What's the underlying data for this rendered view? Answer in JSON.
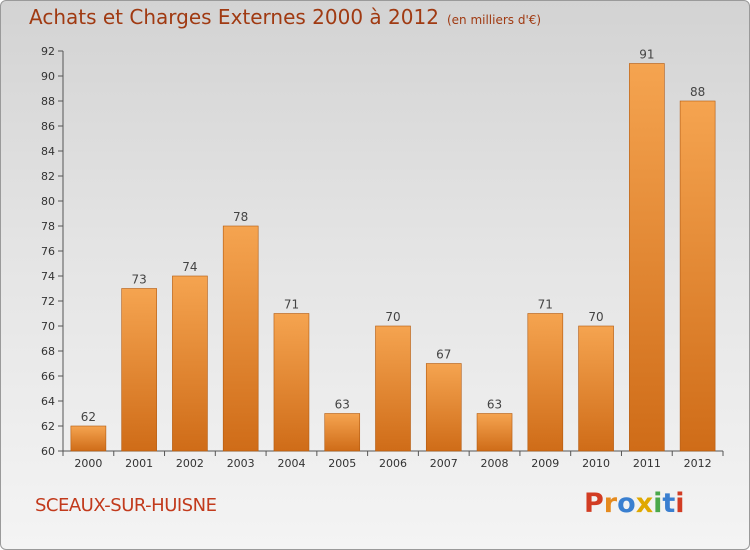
{
  "header": {
    "title": "Achats et Charges Externes 2000 à 2012",
    "unit": "(en milliers d'€)"
  },
  "footer": {
    "city": "SCEAUX-SUR-HUISNE",
    "brand_letters": [
      "P",
      "r",
      "o",
      "x",
      "i",
      "t",
      "i"
    ],
    "brand_colors": [
      "#d23c23",
      "#e58a1e",
      "#3a7fd0",
      "#e0a800",
      "#4aa84a",
      "#3a7fd0",
      "#d23c23"
    ]
  },
  "colors": {
    "bar_light": "#f5a450",
    "bar_dark": "#cf6c18",
    "bar_edge": "#b25a10"
  },
  "chart_data": {
    "type": "bar",
    "categories": [
      "2000",
      "2001",
      "2002",
      "2003",
      "2004",
      "2005",
      "2006",
      "2007",
      "2008",
      "2009",
      "2010",
      "2011",
      "2012"
    ],
    "values": [
      62,
      73,
      74,
      78,
      71,
      63,
      70,
      67,
      63,
      71,
      70,
      91,
      88
    ],
    "ylim": [
      60,
      92
    ],
    "yticks": [
      60,
      62,
      64,
      66,
      68,
      70,
      72,
      74,
      76,
      78,
      80,
      82,
      84,
      86,
      88,
      90,
      92
    ],
    "grid": false,
    "title": "Achats et Charges Externes 2000 à 2012",
    "xlabel": "",
    "ylabel": ""
  }
}
